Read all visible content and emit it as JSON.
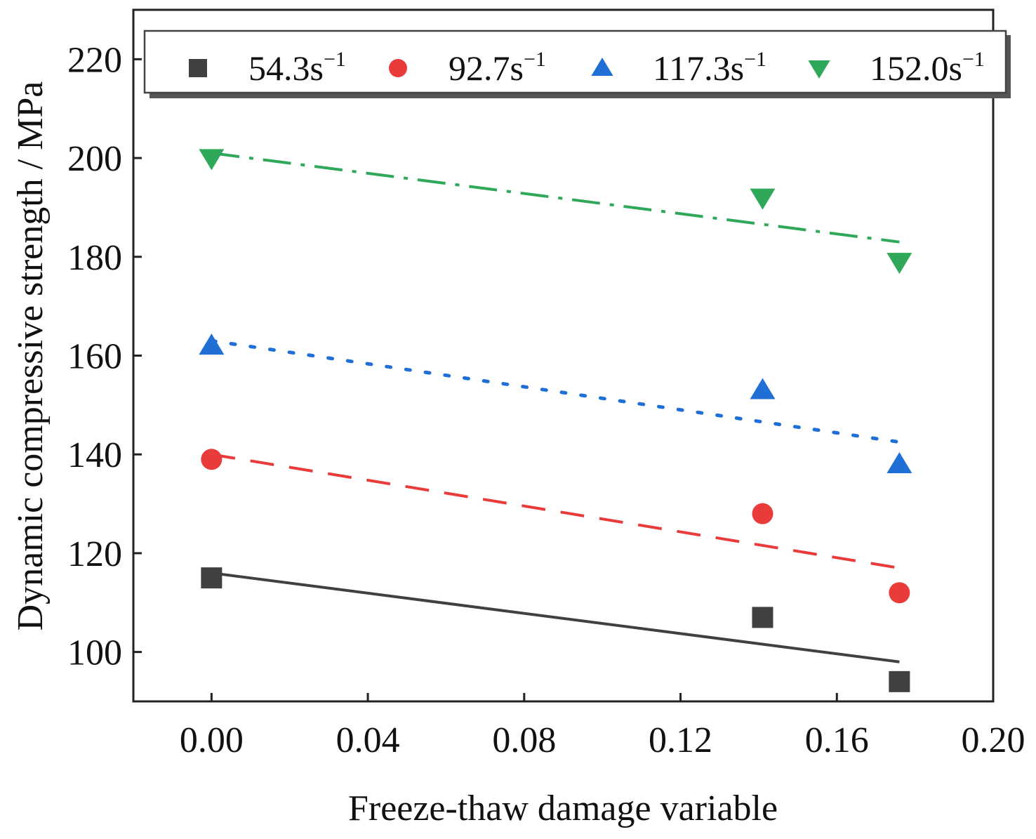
{
  "chart_data": {
    "type": "scatter",
    "title": "",
    "xlabel": "Freeze-thaw damage variable",
    "ylabel": "Dynamic compressive strength / MPa",
    "xlim": [
      -0.02,
      0.2
    ],
    "ylim": [
      90,
      230
    ],
    "xticks": [
      "0.00",
      "0.04",
      "0.08",
      "0.12",
      "0.16",
      "0.20"
    ],
    "yticks": [
      "100",
      "120",
      "140",
      "160",
      "180",
      "200",
      "220"
    ],
    "legend_position": "top",
    "series": [
      {
        "name": "54.3s",
        "superscript": "−1",
        "marker": "square",
        "line_style": "solid",
        "color": "#404040",
        "x": [
          0.0,
          0.141,
          0.176
        ],
        "y": [
          115,
          107,
          94
        ],
        "fit": {
          "x": [
            0.0,
            0.176
          ],
          "y": [
            116,
            98
          ]
        }
      },
      {
        "name": "92.7s",
        "superscript": "−1",
        "marker": "circle",
        "line_style": "dash",
        "color": "#ea3b3b",
        "x": [
          0.0,
          0.141,
          0.176
        ],
        "y": [
          139,
          128,
          112
        ],
        "fit": {
          "x": [
            0.0,
            0.176
          ],
          "y": [
            140,
            117
          ]
        }
      },
      {
        "name": "117.3s",
        "superscript": "−1",
        "marker": "triangle-up",
        "line_style": "dot",
        "color": "#1f6fd6",
        "x": [
          0.0,
          0.141,
          0.176
        ],
        "y": [
          162,
          153,
          138
        ],
        "fit": {
          "x": [
            0.0,
            0.176
          ],
          "y": [
            163,
            142.5
          ]
        }
      },
      {
        "name": "152.0s",
        "superscript": "−1",
        "marker": "triangle-down",
        "line_style": "dashdot",
        "color": "#2fa85a",
        "x": [
          0.0,
          0.141,
          0.176
        ],
        "y": [
          200,
          192,
          179
        ],
        "fit": {
          "x": [
            0.0,
            0.176
          ],
          "y": [
            201,
            183
          ]
        }
      }
    ]
  }
}
